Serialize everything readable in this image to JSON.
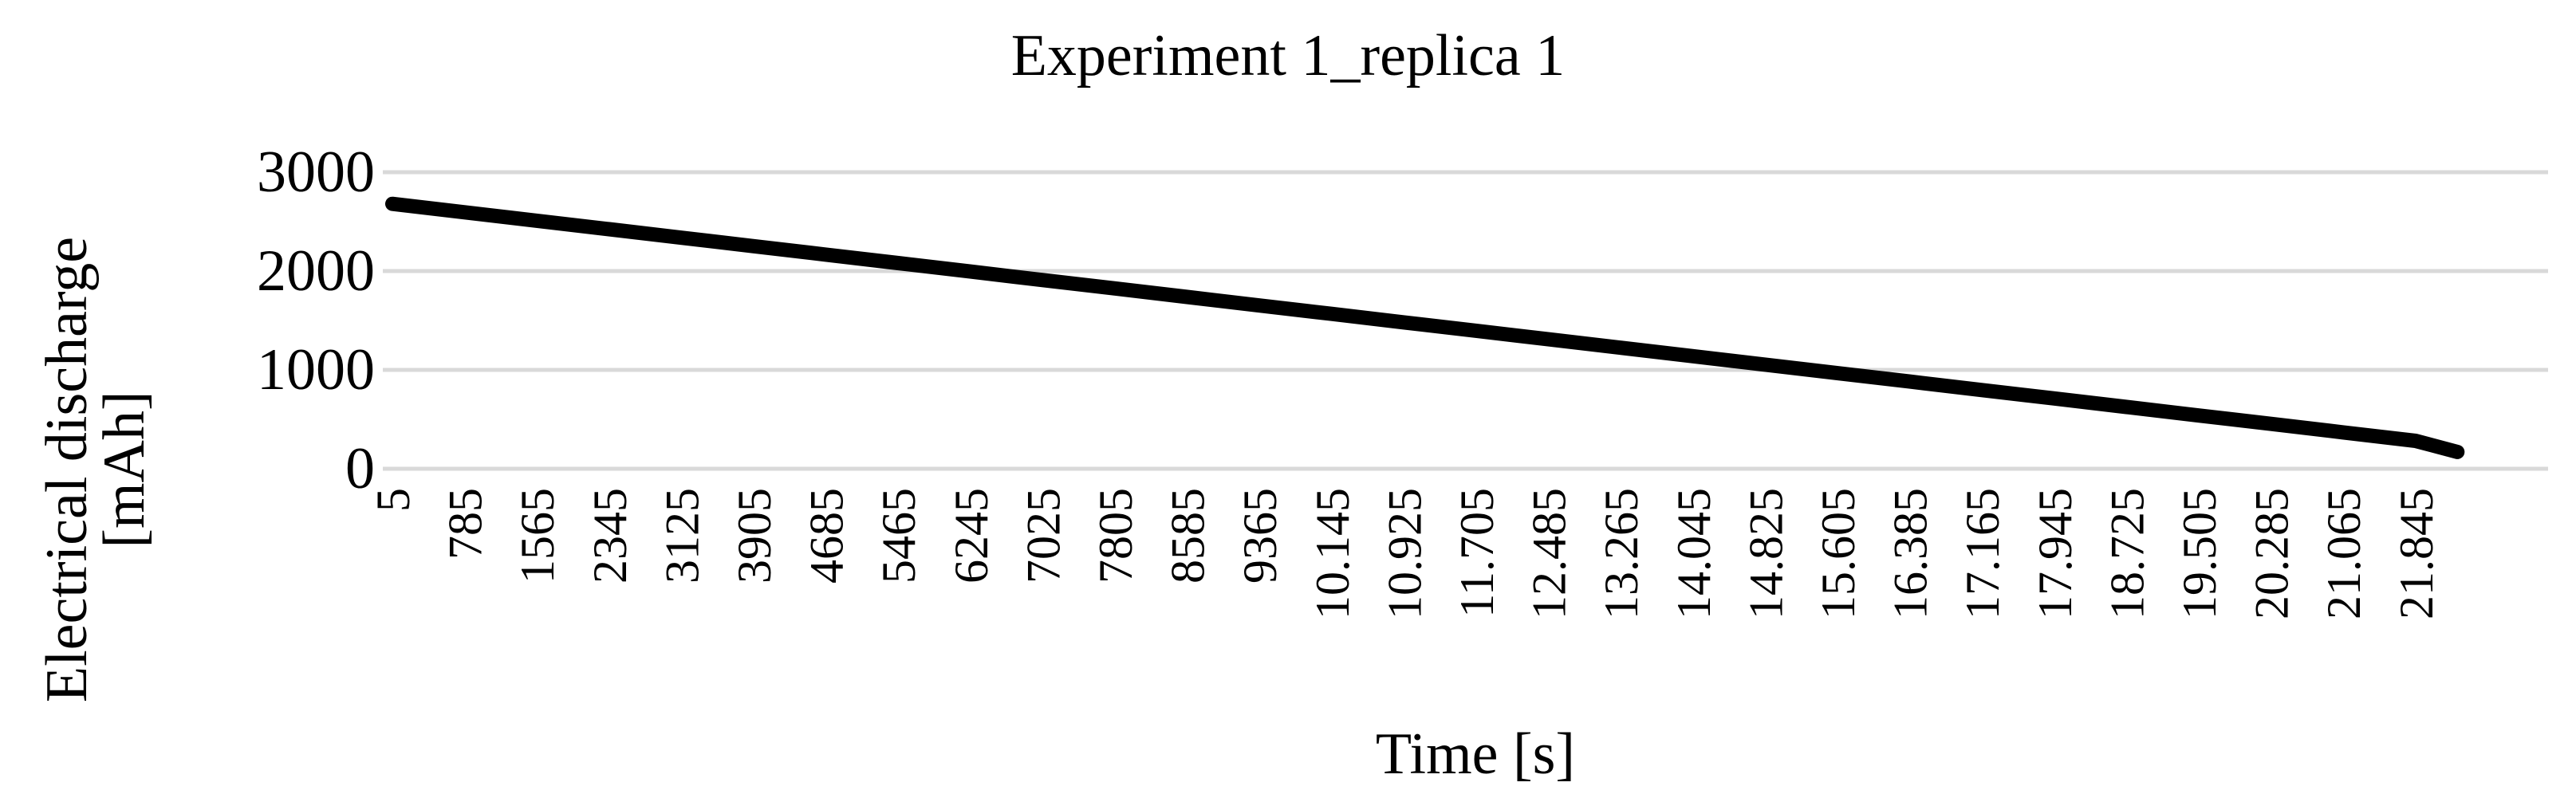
{
  "chart_data": {
    "type": "line",
    "title": "Experiment 1_replica 1",
    "xlabel": "Time [s]",
    "ylabel_lines": [
      "Electrical discharge",
      "[mAh]"
    ],
    "ylim": [
      0,
      3000
    ],
    "yticks": [
      "0",
      "1000",
      "2000",
      "3000"
    ],
    "ytick_values": [
      0,
      1000,
      2000,
      3000
    ],
    "grid": true,
    "legend": "none",
    "categories": [
      "5",
      "785",
      "1565",
      "2345",
      "3125",
      "3905",
      "4685",
      "5465",
      "6245",
      "7025",
      "7805",
      "8585",
      "9365",
      "10.145",
      "10.925",
      "11.705",
      "12.485",
      "13.265",
      "14.045",
      "14.825",
      "15.605",
      "16.385",
      "17.165",
      "17.945",
      "18.725",
      "19.505",
      "20.285",
      "21.065",
      "21.845"
    ],
    "series": [
      {
        "color": "#000000",
        "values": [
          2680,
          2594,
          2509,
          2423,
          2337,
          2252,
          2166,
          2081,
          1995,
          1909,
          1824,
          1738,
          1652,
          1567,
          1481,
          1396,
          1310,
          1224,
          1139,
          1053,
          967,
          882,
          796,
          711,
          625,
          539,
          454,
          368,
          282
        ]
      }
    ],
    "end_point": {
      "x_extra_fraction": 0.58,
      "value": 170
    }
  }
}
